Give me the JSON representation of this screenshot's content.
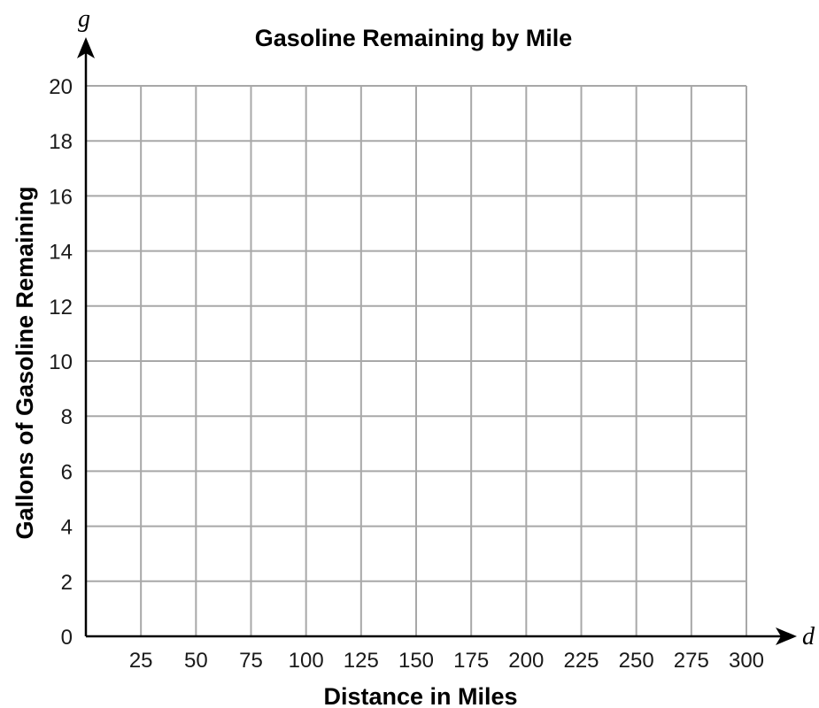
{
  "chart_data": {
    "type": "scatter",
    "title": "Gasoline Remaining by Mile",
    "xlabel": "Distance in Miles",
    "ylabel": "Gallons of Gasoline Remaining",
    "x_variable": "d",
    "y_variable": "g",
    "xlim": [
      0,
      300
    ],
    "ylim": [
      0,
      20
    ],
    "x_ticks": [
      25,
      50,
      75,
      100,
      125,
      150,
      175,
      200,
      225,
      250,
      275,
      300
    ],
    "y_ticks": [
      0,
      2,
      4,
      6,
      8,
      10,
      12,
      14,
      16,
      18,
      20
    ],
    "grid": true,
    "series": []
  }
}
